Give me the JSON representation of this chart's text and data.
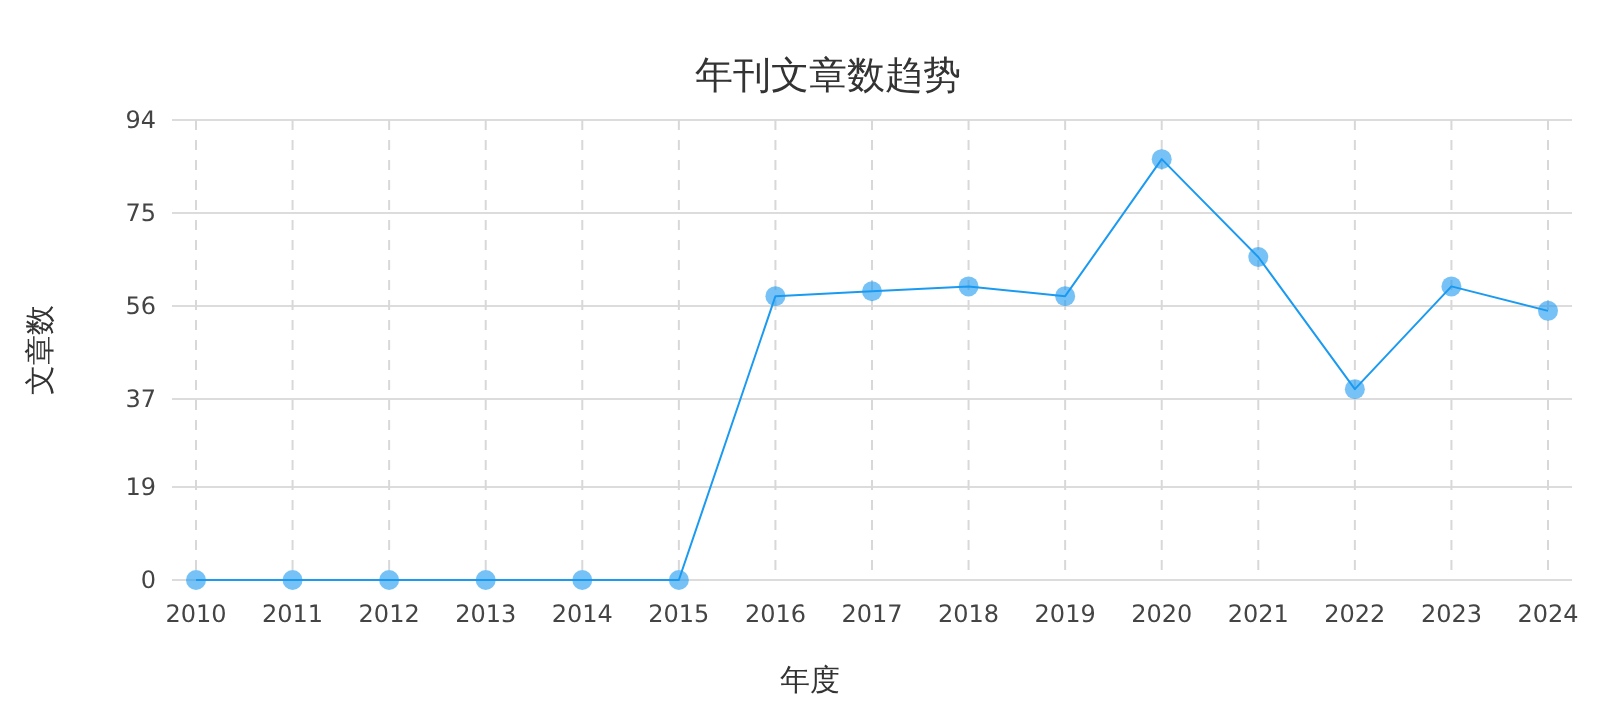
{
  "chart_data": {
    "type": "line",
    "title": "年刊文章数趋势",
    "xlabel": "年度",
    "ylabel": "文章数",
    "categories": [
      "2010",
      "2011",
      "2012",
      "2013",
      "2014",
      "2015",
      "2016",
      "2017",
      "2018",
      "2019",
      "2020",
      "2021",
      "2022",
      "2023",
      "2024"
    ],
    "series": [
      {
        "color": "#1a9af0",
        "values": [
          0,
          0,
          0,
          0,
          0,
          0,
          58,
          59,
          60,
          58,
          86,
          66,
          39,
          60,
          55
        ]
      }
    ],
    "ylim": [
      0,
      94
    ],
    "yticks": [
      0,
      19,
      37,
      56,
      75,
      94
    ],
    "grid": true,
    "marker": "circle"
  }
}
